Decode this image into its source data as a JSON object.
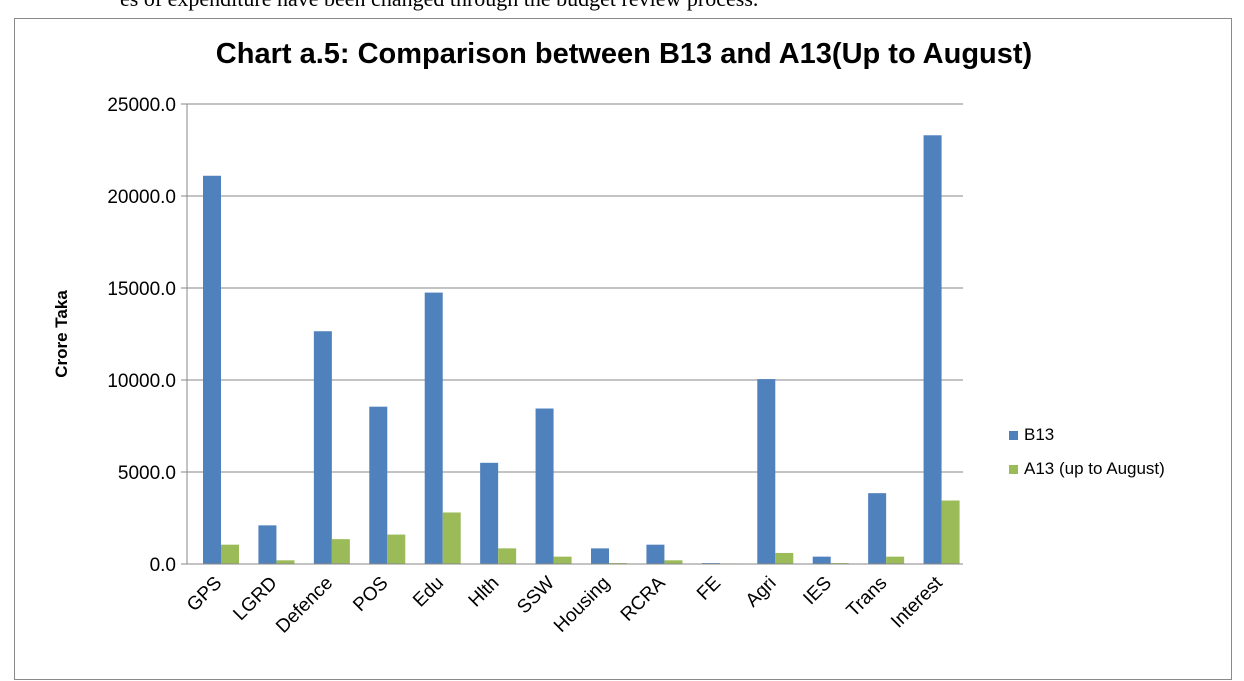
{
  "page": {
    "top_text": "es of expenditure have been changed through the budget review process."
  },
  "colors": {
    "B13": "#4f81bd",
    "A13": "#9bbb59",
    "gridline": "#878787",
    "axis": "#878787"
  },
  "chart_data": {
    "type": "bar",
    "title": "Chart a.5: Comparison between B13 and A13(Up to August)",
    "xlabel": "",
    "ylabel": "Crore Taka",
    "ylim": [
      0,
      25000
    ],
    "yticks": [
      "0.0",
      "5000.0",
      "10000.0",
      "15000.0",
      "20000.0",
      "25000.0"
    ],
    "grid": true,
    "legend_position": "right",
    "categories": [
      "GPS",
      "LGRD",
      "Defence",
      "POS",
      "Edu",
      "Hlth",
      "SSW",
      "Housing",
      "RCRA",
      "FE",
      "Agri",
      "IES",
      "Trans",
      "Interest"
    ],
    "series": [
      {
        "name": "B13",
        "color_key": "B13",
        "values": [
          21100,
          2100,
          12650,
          8550,
          14750,
          5500,
          8450,
          850,
          1050,
          50,
          10050,
          400,
          3850,
          23300
        ]
      },
      {
        "name": "A13 (up to August)",
        "color_key": "A13",
        "values": [
          1050,
          200,
          1350,
          1600,
          2800,
          850,
          400,
          50,
          200,
          30,
          600,
          50,
          400,
          3450
        ]
      }
    ]
  }
}
